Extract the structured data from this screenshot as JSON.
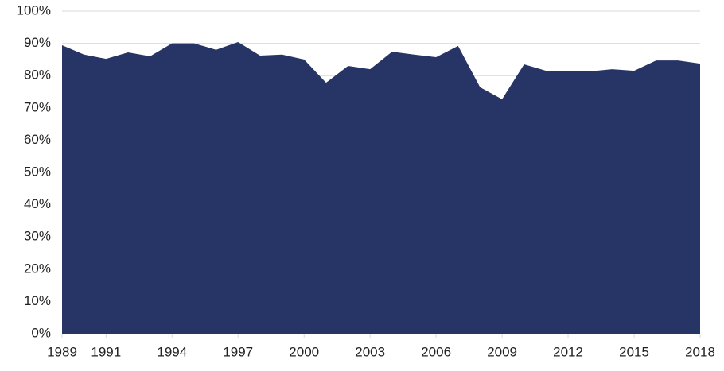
{
  "chart_data": {
    "type": "area",
    "color": "#263566",
    "grid": true,
    "x": [
      1989,
      1990,
      1991,
      1992,
      1993,
      1994,
      1995,
      1996,
      1997,
      1998,
      1999,
      2000,
      2001,
      2002,
      2003,
      2004,
      2005,
      2006,
      2007,
      2008,
      2009,
      2010,
      2011,
      2012,
      2013,
      2014,
      2015,
      2016,
      2017,
      2018
    ],
    "values": [
      89.4,
      86.5,
      85.2,
      87.2,
      86,
      90,
      90,
      88,
      90.4,
      86.2,
      86.5,
      85,
      77.8,
      83,
      82,
      87.4,
      86.5,
      85.7,
      89.2,
      76.4,
      72.7,
      83.5,
      81.5,
      81.5,
      81.3,
      82,
      81.5,
      84.7,
      84.7,
      83.7
    ],
    "xlim": [
      1989,
      2018
    ],
    "xticks": [
      1989,
      1991,
      1994,
      1997,
      2000,
      2003,
      2006,
      2009,
      2012,
      2015,
      2018
    ],
    "ylim": [
      0,
      100
    ],
    "yticks": [
      {
        "value": 0,
        "label": "0%"
      },
      {
        "value": 10,
        "label": "10%"
      },
      {
        "value": 20,
        "label": "20%"
      },
      {
        "value": 30,
        "label": "30%"
      },
      {
        "value": 40,
        "label": "40%"
      },
      {
        "value": 50,
        "label": "50%"
      },
      {
        "value": 60,
        "label": "60%"
      },
      {
        "value": 70,
        "label": "70%"
      },
      {
        "value": 80,
        "label": "80%"
      },
      {
        "value": 90,
        "label": "90%"
      },
      {
        "value": 100,
        "label": "100%"
      }
    ]
  }
}
